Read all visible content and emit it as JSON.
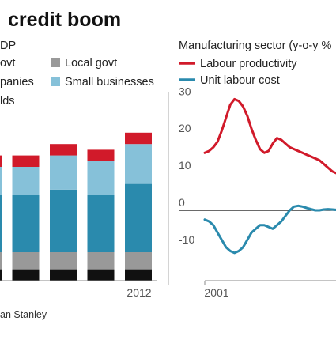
{
  "headline": "credit boom",
  "left_panel": {
    "units_fragment": "DP",
    "source_fragment": "an Stanley"
  },
  "chart_data": [
    {
      "type": "bar",
      "stacked": true,
      "categories": [
        "",
        "",
        "",
        "",
        "",
        "2012"
      ],
      "legend": [
        {
          "name": "ovt",
          "color": "#111111"
        },
        {
          "name": "Local govt",
          "color": "#999999"
        },
        {
          "name": "panies",
          "color": "#2a8aad"
        },
        {
          "name": "Small businesses",
          "color": "#86c1d9"
        },
        {
          "name": "lds",
          "color": "#d11a2a"
        }
      ],
      "series": [
        {
          "name": "govt",
          "color": "#111111",
          "values": [
            2,
            2,
            2,
            2,
            2,
            2
          ]
        },
        {
          "name": "Local govt",
          "color": "#999999",
          "values": [
            3,
            3,
            3,
            3,
            3,
            3
          ]
        },
        {
          "name": "companies",
          "color": "#2a8aad",
          "values": [
            9,
            10,
            10,
            11,
            10,
            12
          ]
        },
        {
          "name": "Small businesses",
          "color": "#86c1d9",
          "values": [
            4,
            5,
            5,
            6,
            6,
            7
          ]
        },
        {
          "name": "households",
          "color": "#d11a2a",
          "values": [
            1,
            2,
            2,
            2,
            2,
            2
          ]
        }
      ],
      "x_tick_labels": [
        "2012"
      ],
      "grid": false
    },
    {
      "type": "line",
      "title": "Manufacturing sector (y-o-y %",
      "x_tick_labels": [
        "2001"
      ],
      "y_ticks": [
        -10,
        0,
        10,
        20,
        30
      ],
      "ylim": [
        -19,
        32
      ],
      "grid": false,
      "zero_line": true,
      "series": [
        {
          "name": "Labour productivity",
          "color": "#d11a2a",
          "x": [
            0,
            0.5,
            1,
            1.5,
            2,
            2.5,
            3,
            3.5,
            4,
            4.5,
            5,
            5.5,
            6,
            6.5,
            7,
            7.5,
            8,
            8.5,
            9,
            9.5,
            10,
            10.5,
            11,
            11.5,
            12,
            12.5,
            13,
            13.5,
            14,
            14.5,
            15,
            15.5,
            16
          ],
          "values": [
            15.5,
            16,
            17,
            18.5,
            21.5,
            25,
            28.5,
            30,
            29.5,
            28,
            25.5,
            22,
            19,
            16.5,
            15.5,
            16,
            18,
            19.5,
            19,
            18,
            17,
            16.5,
            16,
            15.5,
            15,
            14.5,
            14,
            13.5,
            12.5,
            11.5,
            10.5,
            10,
            9.5
          ]
        },
        {
          "name": "Unit labour cost",
          "color": "#2a8aad",
          "x": [
            0,
            0.5,
            1,
            1.5,
            2,
            2.5,
            3,
            3.5,
            4,
            4.5,
            5,
            5.5,
            6,
            6.5,
            7,
            7.5,
            8,
            8.5,
            9,
            9.5,
            10,
            10.5,
            11,
            11.5,
            12,
            12.5,
            13,
            13.5,
            14,
            14.5,
            15,
            15.5,
            16
          ],
          "values": [
            -2.5,
            -3,
            -4,
            -6,
            -8,
            -10,
            -11,
            -11.5,
            -11,
            -10,
            -8,
            -6,
            -5,
            -4,
            -4,
            -4.5,
            -5,
            -4,
            -3,
            -1.5,
            0,
            1,
            1.2,
            1,
            0.6,
            0.3,
            0,
            0,
            0.2,
            0.3,
            0.2,
            0.1,
            0
          ]
        }
      ]
    }
  ]
}
